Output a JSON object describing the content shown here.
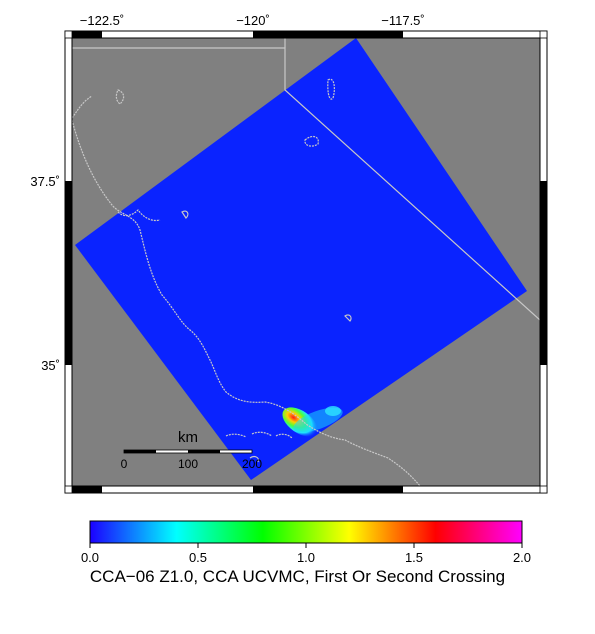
{
  "map": {
    "lon_ticks": [
      "−122.5˚",
      "−120˚",
      "−117.5˚"
    ],
    "lat_ticks": [
      "37.5˚",
      "35˚"
    ],
    "background_color": "#808080",
    "coast_color": "#c8c8c8",
    "model_color": "#0a23ff",
    "lon_range": [
      -123.5,
      -115.5
    ],
    "lat_range": [
      33.5,
      39.5
    ]
  },
  "scale_bar": {
    "title": "km",
    "labels": [
      "0",
      "100",
      "200"
    ]
  },
  "colorbar": {
    "ticks": [
      "0.0",
      "0.5",
      "1.0",
      "1.5",
      "2.0"
    ],
    "stops": [
      "#1c00ff",
      "#00ffff",
      "#00ff00",
      "#ffff00",
      "#ff0000",
      "#ff00ff"
    ]
  },
  "caption": "CCA−06 Z1.0, CCA UCVMC, First Or Second Crossing"
}
